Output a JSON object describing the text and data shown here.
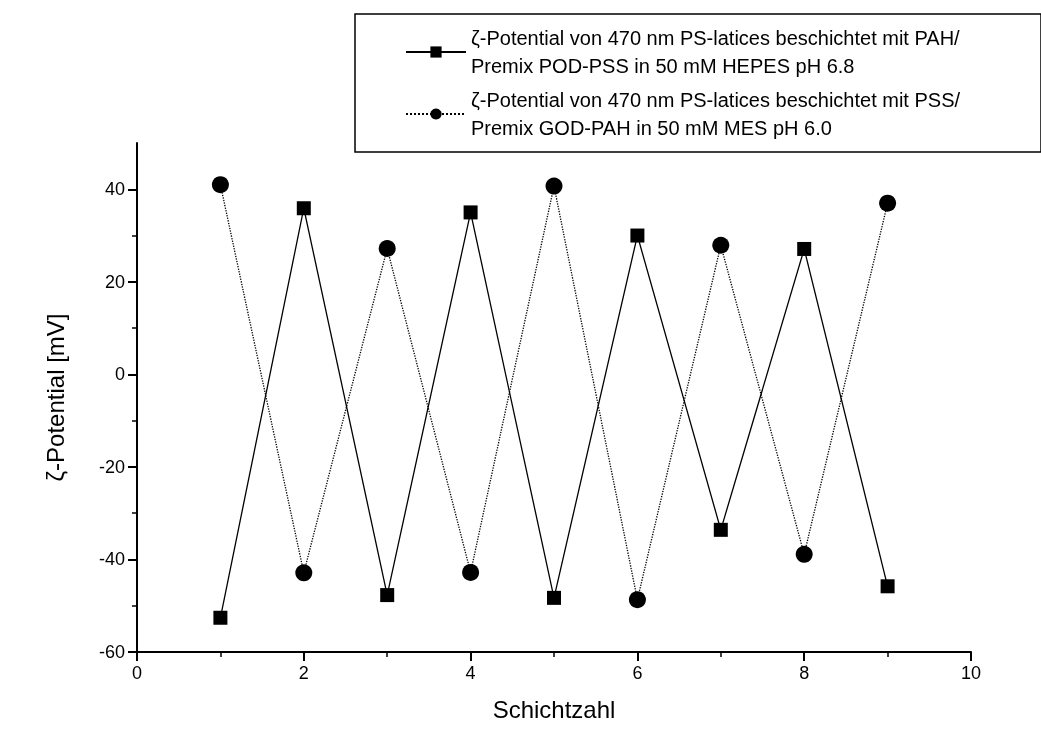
{
  "chart_data": {
    "type": "line",
    "xlabel": "Schichtzahl",
    "ylabel": "ζ-Potential [mV]",
    "x": [
      1,
      2,
      3,
      4,
      5,
      6,
      7,
      8,
      9
    ],
    "series": [
      {
        "name": "ζ-Potential von 470 nm PS-latices beschichtet mit PAH/Premix POD-PSS in 50 mM HEPES pH 6.8",
        "color": "#000000",
        "marker": "square",
        "line_style": "solid",
        "values": [
          -52.6,
          35.9,
          -47.7,
          35.0,
          -48.3,
          30.0,
          -33.6,
          27.1,
          -45.8
        ]
      },
      {
        "name": "ζ-Potential von 470 nm PS-latices beschichtet mit PSS/Premix GOD-PAH in 50 mM MES pH 6.0",
        "color": "#000000",
        "marker": "circle",
        "line_style": "dotted",
        "values": [
          41.0,
          -42.9,
          27.2,
          -42.8,
          40.7,
          -48.7,
          27.9,
          -38.9,
          37.0
        ]
      }
    ],
    "xlim": [
      0,
      10
    ],
    "xticks": [
      0,
      2,
      4,
      6,
      8,
      10
    ],
    "ylim": [
      -60,
      50
    ],
    "yticks": [
      -60,
      -40,
      -20,
      0,
      20,
      40
    ],
    "grid": false,
    "legend": "top right"
  }
}
